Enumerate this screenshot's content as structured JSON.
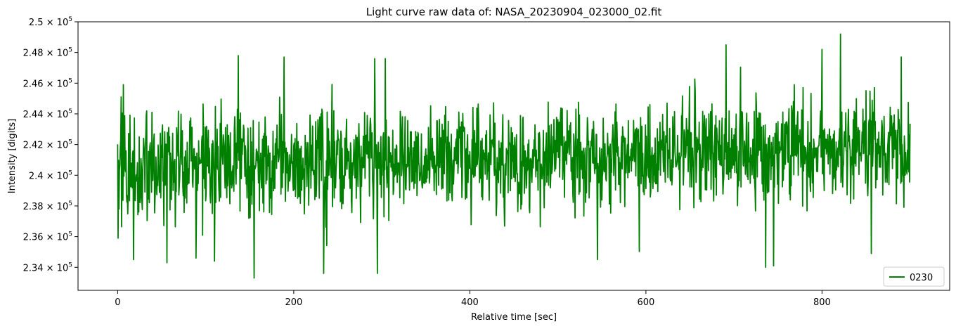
{
  "chart_data": {
    "type": "line",
    "title": "Light curve raw data of: NASA_20230904_023000_02.fit",
    "xlabel": "Relative time [sec]",
    "ylabel": "Intensity [digits]",
    "xlim": [
      -45,
      945
    ],
    "ylim": [
      232500,
      250000
    ],
    "x_ticks": [
      0,
      200,
      400,
      600,
      800
    ],
    "y_ticks": [
      {
        "value": 234000,
        "mantissa": "2.34"
      },
      {
        "value": 236000,
        "mantissa": "2.36"
      },
      {
        "value": 238000,
        "mantissa": "2.38"
      },
      {
        "value": 240000,
        "mantissa": "2.4"
      },
      {
        "value": 242000,
        "mantissa": "2.42"
      },
      {
        "value": 244000,
        "mantissa": "2.44"
      },
      {
        "value": 246000,
        "mantissa": "2.46"
      },
      {
        "value": 248000,
        "mantissa": "2.48"
      },
      {
        "value": 250000,
        "mantissa": "2.5"
      }
    ],
    "y_tick_multiplier": "× 10",
    "y_tick_exponent": "5",
    "grid": false,
    "legend_position": "lower-right",
    "series": [
      {
        "name": "0230",
        "color": "#008000",
        "x_start": 0,
        "x_step": 0.5,
        "x_end": 900,
        "mean": 241000,
        "noise_sd": 1600,
        "trend_start": 240600,
        "trend_end": 241700,
        "seed": 20230904,
        "notable_points": [
          {
            "x": 0.5,
            "y": 235900
          },
          {
            "x": 4,
            "y": 245100
          },
          {
            "x": 6.5,
            "y": 245900
          },
          {
            "x": 18,
            "y": 234500
          },
          {
            "x": 56,
            "y": 234300
          },
          {
            "x": 89,
            "y": 234600
          },
          {
            "x": 110,
            "y": 234400
          },
          {
            "x": 137,
            "y": 247800
          },
          {
            "x": 155,
            "y": 233300
          },
          {
            "x": 189,
            "y": 247700
          },
          {
            "x": 234,
            "y": 233600
          },
          {
            "x": 292,
            "y": 247600
          },
          {
            "x": 295,
            "y": 233600
          },
          {
            "x": 304,
            "y": 247600
          },
          {
            "x": 545,
            "y": 234500
          },
          {
            "x": 691,
            "y": 248500
          },
          {
            "x": 736,
            "y": 234000
          },
          {
            "x": 745,
            "y": 234100
          },
          {
            "x": 800,
            "y": 248200
          },
          {
            "x": 821,
            "y": 249200
          },
          {
            "x": 856,
            "y": 234900
          },
          {
            "x": 890,
            "y": 247700
          }
        ]
      }
    ]
  }
}
